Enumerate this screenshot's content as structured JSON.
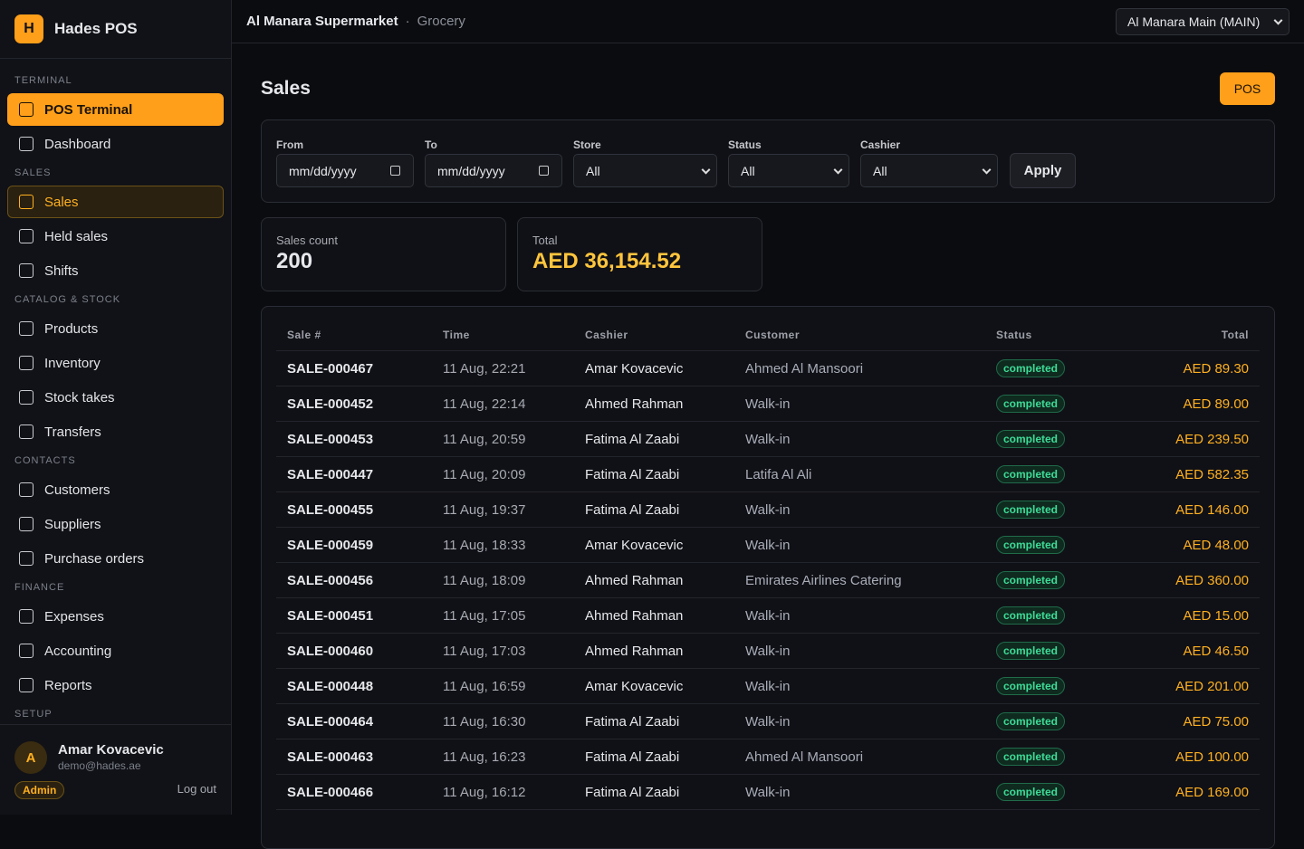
{
  "sidebar": {
    "brand": {
      "logo": "H",
      "name": "Hades POS"
    },
    "sections": [
      {
        "label": "TERMINAL",
        "items": [
          "POS Terminal",
          "Dashboard"
        ]
      },
      {
        "label": "SALES",
        "items": [
          "Sales",
          "Held sales",
          "Shifts"
        ]
      },
      {
        "label": "CATALOG & STOCK",
        "items": [
          "Products",
          "Inventory",
          "Stock takes",
          "Transfers"
        ]
      },
      {
        "label": "CONTACTS",
        "items": [
          "Customers",
          "Suppliers",
          "Purchase orders"
        ]
      },
      {
        "label": "FINANCE",
        "items": [
          "Expenses",
          "Accounting",
          "Reports"
        ]
      },
      {
        "label": "SETUP",
        "items": []
      }
    ],
    "user": {
      "avatar": "A",
      "name": "Amar Kovacevic",
      "email": "demo@hades.ae",
      "role": "Admin",
      "logout": "Log out"
    }
  },
  "topbar": {
    "business": "Al Manara Supermarket",
    "category": "Grocery",
    "store": "Al Manara Main (MAIN)"
  },
  "page": {
    "title": "Sales",
    "pos_button": "POS"
  },
  "filters": {
    "from": {
      "label": "From",
      "placeholder": "mm/dd/yyyy"
    },
    "to": {
      "label": "To",
      "placeholder": "mm/dd/yyyy"
    },
    "store": {
      "label": "Store",
      "value": "All"
    },
    "status": {
      "label": "Status",
      "value": "All"
    },
    "cashier": {
      "label": "Cashier",
      "value": "All"
    },
    "apply": "Apply"
  },
  "stats": [
    {
      "label": "Sales count",
      "value": "200"
    },
    {
      "label": "Total",
      "value": "AED 36,154.52"
    }
  ],
  "table": {
    "headers": [
      "Sale #",
      "Time",
      "Cashier",
      "Customer",
      "Status",
      "Total"
    ],
    "rows": [
      [
        "SALE-000467",
        "11 Aug, 22:21",
        "Amar Kovacevic",
        "Ahmed Al Mansoori",
        "completed",
        "AED 89.30"
      ],
      [
        "SALE-000452",
        "11 Aug, 22:14",
        "Ahmed Rahman",
        "Walk-in",
        "completed",
        "AED 89.00"
      ],
      [
        "SALE-000453",
        "11 Aug, 20:59",
        "Fatima Al Zaabi",
        "Walk-in",
        "completed",
        "AED 239.50"
      ],
      [
        "SALE-000447",
        "11 Aug, 20:09",
        "Fatima Al Zaabi",
        "Latifa Al Ali",
        "completed",
        "AED 582.35"
      ],
      [
        "SALE-000455",
        "11 Aug, 19:37",
        "Fatima Al Zaabi",
        "Walk-in",
        "completed",
        "AED 146.00"
      ],
      [
        "SALE-000459",
        "11 Aug, 18:33",
        "Amar Kovacevic",
        "Walk-in",
        "completed",
        "AED 48.00"
      ],
      [
        "SALE-000456",
        "11 Aug, 18:09",
        "Ahmed Rahman",
        "Emirates Airlines Catering",
        "completed",
        "AED 360.00"
      ],
      [
        "SALE-000451",
        "11 Aug, 17:05",
        "Ahmed Rahman",
        "Walk-in",
        "completed",
        "AED 15.00"
      ],
      [
        "SALE-000460",
        "11 Aug, 17:03",
        "Ahmed Rahman",
        "Walk-in",
        "completed",
        "AED 46.50"
      ],
      [
        "SALE-000448",
        "11 Aug, 16:59",
        "Amar Kovacevic",
        "Walk-in",
        "completed",
        "AED 201.00"
      ],
      [
        "SALE-000464",
        "11 Aug, 16:30",
        "Fatima Al Zaabi",
        "Walk-in",
        "completed",
        "AED 75.00"
      ],
      [
        "SALE-000463",
        "11 Aug, 16:23",
        "Fatima Al Zaabi",
        "Ahmed Al Mansoori",
        "completed",
        "AED 100.00"
      ],
      [
        "SALE-000466",
        "11 Aug, 16:12",
        "Fatima Al Zaabi",
        "Walk-in",
        "completed",
        "AED 169.00"
      ]
    ]
  }
}
